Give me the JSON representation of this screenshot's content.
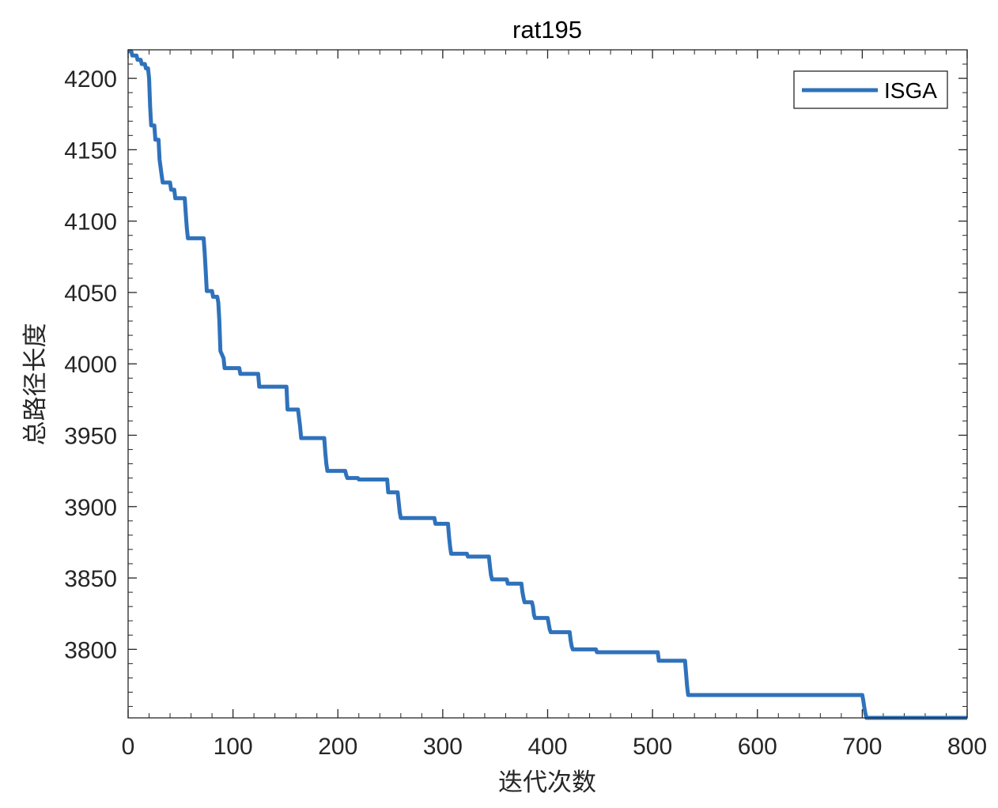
{
  "chart_data": {
    "type": "line",
    "title": "rat195",
    "xlabel": "迭代次数",
    "ylabel": "总路径长度",
    "xlim": [
      0,
      800
    ],
    "ylim": [
      3752,
      4220
    ],
    "xticks": [
      0,
      100,
      200,
      300,
      400,
      500,
      600,
      700,
      800
    ],
    "yticks": [
      3800,
      3850,
      3900,
      3950,
      4000,
      4050,
      4100,
      4150,
      4200
    ],
    "grid": false,
    "legend": {
      "position": "top-right",
      "entries": [
        "ISGA"
      ]
    },
    "colors": {
      "series": "#2f72bb",
      "axis": "#262626"
    },
    "series": [
      {
        "name": "ISGA",
        "x": [
          0,
          3,
          4,
          8,
          9,
          12,
          13,
          16,
          17,
          19,
          20,
          21,
          22,
          25,
          26,
          29,
          30,
          32,
          33,
          40,
          41,
          44,
          45,
          54,
          55,
          56,
          57,
          72,
          73,
          74,
          75,
          80,
          81,
          85,
          86,
          87,
          88,
          91,
          92,
          106,
          107,
          124,
          125,
          151,
          152,
          162,
          163,
          164,
          165,
          187,
          188,
          189,
          190,
          207,
          208,
          209,
          210,
          219,
          220,
          247,
          248,
          257,
          258,
          259,
          260,
          292,
          293,
          305,
          306,
          307,
          308,
          323,
          324,
          344,
          345,
          346,
          347,
          361,
          362,
          375,
          376,
          377,
          378,
          385,
          386,
          387,
          388,
          400,
          401,
          402,
          403,
          421,
          422,
          423,
          424,
          446,
          447,
          505,
          506,
          531,
          532,
          533,
          534,
          700,
          701,
          702,
          703,
          704,
          705,
          800
        ],
        "values": [
          4219,
          4219,
          4216,
          4216,
          4213,
          4213,
          4210,
          4210,
          4207,
          4207,
          4200,
          4180,
          4167,
          4167,
          4157,
          4157,
          4143,
          4132,
          4127,
          4127,
          4122,
          4122,
          4116,
          4116,
          4105,
          4095,
          4088,
          4088,
          4078,
          4065,
          4051,
          4051,
          4047,
          4047,
          4043,
          4030,
          4009,
          4004,
          3997,
          3997,
          3993,
          3993,
          3984,
          3984,
          3968,
          3968,
          3962,
          3956,
          3948,
          3948,
          3938,
          3930,
          3925,
          3925,
          3922,
          3920,
          3920,
          3920,
          3919,
          3919,
          3910,
          3910,
          3903,
          3896,
          3892,
          3892,
          3888,
          3888,
          3879,
          3872,
          3867,
          3867,
          3865,
          3865,
          3858,
          3852,
          3849,
          3849,
          3846,
          3846,
          3840,
          3836,
          3833,
          3833,
          3830,
          3824,
          3822,
          3822,
          3818,
          3814,
          3812,
          3812,
          3806,
          3802,
          3800,
          3800,
          3798,
          3798,
          3792,
          3792,
          3783,
          3774,
          3768,
          3768,
          3764,
          3759,
          3755,
          3752,
          3752,
          3752
        ]
      }
    ]
  }
}
